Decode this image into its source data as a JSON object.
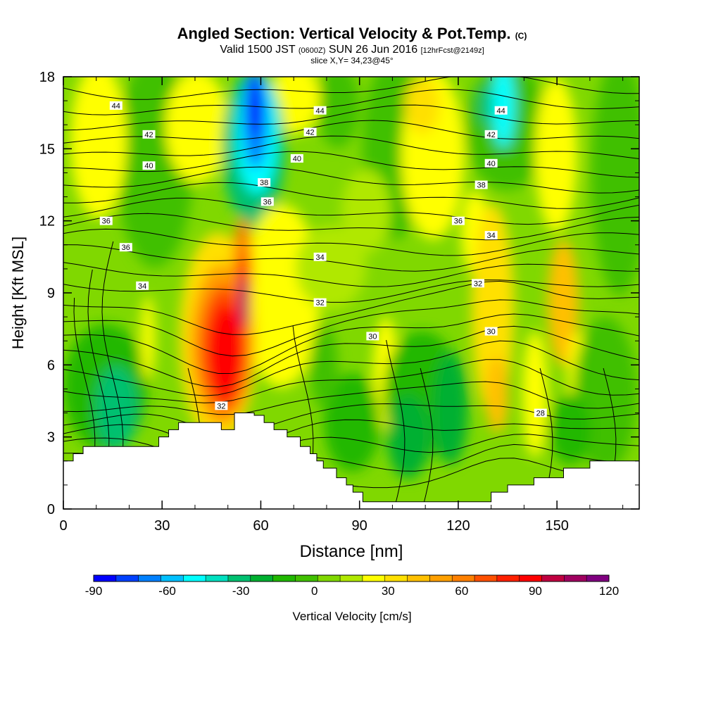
{
  "header": {
    "title": "Angled Section: Vertical Velocity & Pot.Temp.",
    "title_unit": "(C)",
    "valid_prefix": "Valid 1500 JST",
    "valid_utc": "(0600Z)",
    "valid_date": "SUN 26 Jun 2016",
    "forecast": "[12hrFcst@2149z]",
    "slice": "slice X,Y= 34,23@45°"
  },
  "chart_data": {
    "type": "heatmap",
    "xlabel": "Distance [nm]",
    "ylabel": "Height [Kft MSL]",
    "xlim": [
      0,
      175
    ],
    "ylim": [
      0,
      18
    ],
    "x_ticks": [
      0,
      30,
      60,
      90,
      120,
      150
    ],
    "y_ticks": [
      0,
      3,
      6,
      9,
      12,
      15,
      18
    ],
    "colorbar": {
      "label": "Vertical Velocity [cm/s]",
      "range": [
        -90,
        120
      ],
      "step": 10,
      "tick_labels": [
        "-90",
        "-60",
        "-30",
        "0",
        "30",
        "60",
        "90",
        "120"
      ],
      "colors": [
        "#0000ff",
        "#0040ff",
        "#0080ff",
        "#00c0ff",
        "#00ffff",
        "#00e0c0",
        "#00c070",
        "#00b030",
        "#20b800",
        "#40c000",
        "#80d800",
        "#b0e800",
        "#ffff00",
        "#ffe000",
        "#ffc000",
        "#ffa000",
        "#ff8000",
        "#ff5000",
        "#ff2000",
        "#ff0000",
        "#c00040",
        "#a00060",
        "#800080"
      ]
    },
    "terrain_kft": [
      [
        0,
        2.0
      ],
      [
        3,
        2.3
      ],
      [
        6,
        2.6
      ],
      [
        29,
        3.0
      ],
      [
        32,
        3.3
      ],
      [
        35,
        3.6
      ],
      [
        48,
        3.3
      ],
      [
        52,
        4.0
      ],
      [
        58,
        3.9
      ],
      [
        61,
        3.6
      ],
      [
        64,
        3.3
      ],
      [
        68,
        3.0
      ],
      [
        72,
        2.6
      ],
      [
        75,
        2.3
      ],
      [
        77,
        2.0
      ],
      [
        79,
        1.7
      ],
      [
        83,
        1.3
      ],
      [
        86,
        1.0
      ],
      [
        88,
        0.7
      ],
      [
        91,
        0.3
      ],
      [
        129,
        0.3
      ],
      [
        130,
        0.7
      ],
      [
        135,
        1.0
      ],
      [
        142,
        1.0
      ],
      [
        143,
        1.3
      ],
      [
        151,
        1.3
      ],
      [
        152,
        1.7
      ],
      [
        158,
        1.7
      ],
      [
        160,
        2.0
      ],
      [
        175,
        2.0
      ]
    ],
    "theta_contour_labels": [
      {
        "value": "44",
        "x": 16,
        "y": 16.8
      },
      {
        "value": "44",
        "x": 78,
        "y": 16.6
      },
      {
        "value": "44",
        "x": 133,
        "y": 16.6
      },
      {
        "value": "42",
        "x": 26,
        "y": 15.6
      },
      {
        "value": "42",
        "x": 75,
        "y": 15.7
      },
      {
        "value": "42",
        "x": 130,
        "y": 15.6
      },
      {
        "value": "40",
        "x": 26,
        "y": 14.3
      },
      {
        "value": "40",
        "x": 71,
        "y": 14.6
      },
      {
        "value": "40",
        "x": 130,
        "y": 14.4
      },
      {
        "value": "38",
        "x": 61,
        "y": 13.6
      },
      {
        "value": "38",
        "x": 127,
        "y": 13.5
      },
      {
        "value": "36",
        "x": 13,
        "y": 12.0
      },
      {
        "value": "36",
        "x": 62,
        "y": 12.8
      },
      {
        "value": "36",
        "x": 120,
        "y": 12.0
      },
      {
        "value": "36",
        "x": 19,
        "y": 10.9
      },
      {
        "value": "34",
        "x": 78,
        "y": 10.5
      },
      {
        "value": "34",
        "x": 130,
        "y": 11.4
      },
      {
        "value": "34",
        "x": 24,
        "y": 9.3
      },
      {
        "value": "32",
        "x": 78,
        "y": 8.6
      },
      {
        "value": "32",
        "x": 126,
        "y": 9.4
      },
      {
        "value": "30",
        "x": 94,
        "y": 7.2
      },
      {
        "value": "30",
        "x": 130,
        "y": 7.4
      },
      {
        "value": "32",
        "x": 48,
        "y": 4.3
      },
      {
        "value": "28",
        "x": 145,
        "y": 4.0
      }
    ]
  }
}
